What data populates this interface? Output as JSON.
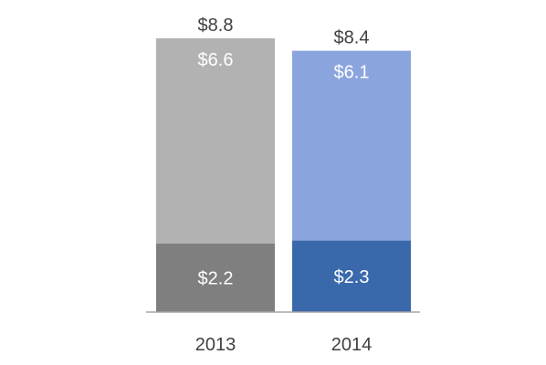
{
  "chart_data": {
    "type": "bar",
    "stacked": true,
    "categories": [
      "2013",
      "2014"
    ],
    "series": [
      {
        "key": "bottom",
        "values": [
          2.2,
          2.3
        ],
        "labels": [
          "$2.2",
          "$2.3"
        ],
        "colors": [
          "#7f7f7f",
          "#3a69ab"
        ]
      },
      {
        "key": "top",
        "values": [
          6.6,
          6.1
        ],
        "labels": [
          "$6.6",
          "$6.1"
        ],
        "colors": [
          "#b2b2b2",
          "#8aa4dd"
        ]
      }
    ],
    "totals": [
      8.8,
      8.4
    ],
    "total_labels": [
      "$8.8",
      "$8.4"
    ],
    "title": "",
    "xlabel": "",
    "ylabel": "",
    "ylim": [
      0,
      8.8
    ],
    "grid": false,
    "legend": "none",
    "colors": {
      "axis": "#a6a6a6",
      "label_inside": "#ffffff",
      "label_outside": "#404040"
    }
  }
}
